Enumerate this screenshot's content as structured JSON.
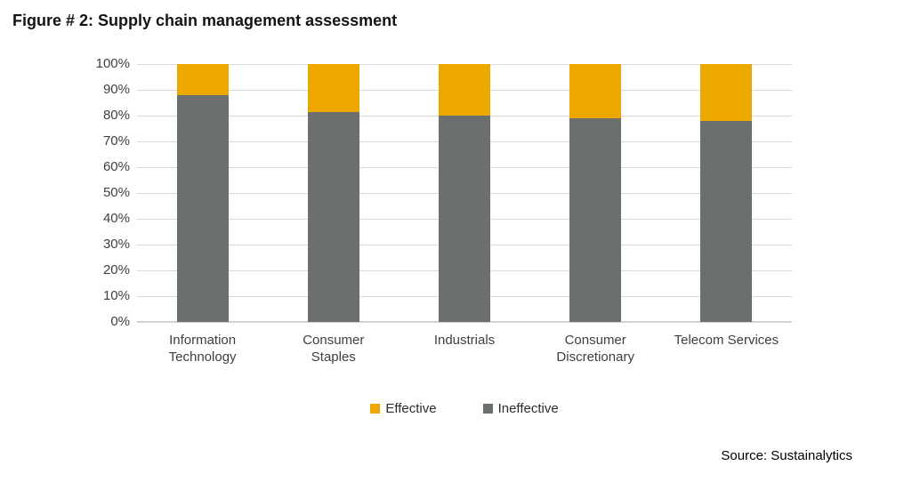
{
  "title": "Figure # 2: Supply chain management assessment",
  "source": "Source: Sustainalytics",
  "colors": {
    "effective": "#EDA800",
    "ineffective": "#6B6F6F",
    "gridline": "#DADADA",
    "axis_text": "#3F3F3F",
    "title_text": "#141414"
  },
  "chart_data": {
    "type": "bar",
    "stacked": true,
    "title": "Figure # 2: Supply chain management assessment",
    "categories": [
      "Information Technology",
      "Consumer Staples",
      "Industrials",
      "Consumer Discretionary",
      "Telecom Services"
    ],
    "category_lines": [
      [
        "Information",
        "Technology"
      ],
      [
        "Consumer",
        "Staples"
      ],
      [
        "Industrials"
      ],
      [
        "Consumer",
        "Discretionary"
      ],
      [
        "Telecom Services"
      ]
    ],
    "series": [
      {
        "name": "Effective",
        "color": "#EDA800",
        "values": [
          12,
          18.5,
          20,
          21,
          22
        ]
      },
      {
        "name": "Ineffective",
        "color": "#6B6F6F",
        "values": [
          88,
          81.5,
          80,
          79,
          78
        ]
      }
    ],
    "xlabel": "",
    "ylabel": "",
    "ylim": [
      0,
      100
    ],
    "yticks": [
      "0%",
      "10%",
      "20%",
      "30%",
      "40%",
      "50%",
      "60%",
      "70%",
      "80%",
      "90%",
      "100%"
    ],
    "grid": true,
    "legend_position": "bottom"
  }
}
